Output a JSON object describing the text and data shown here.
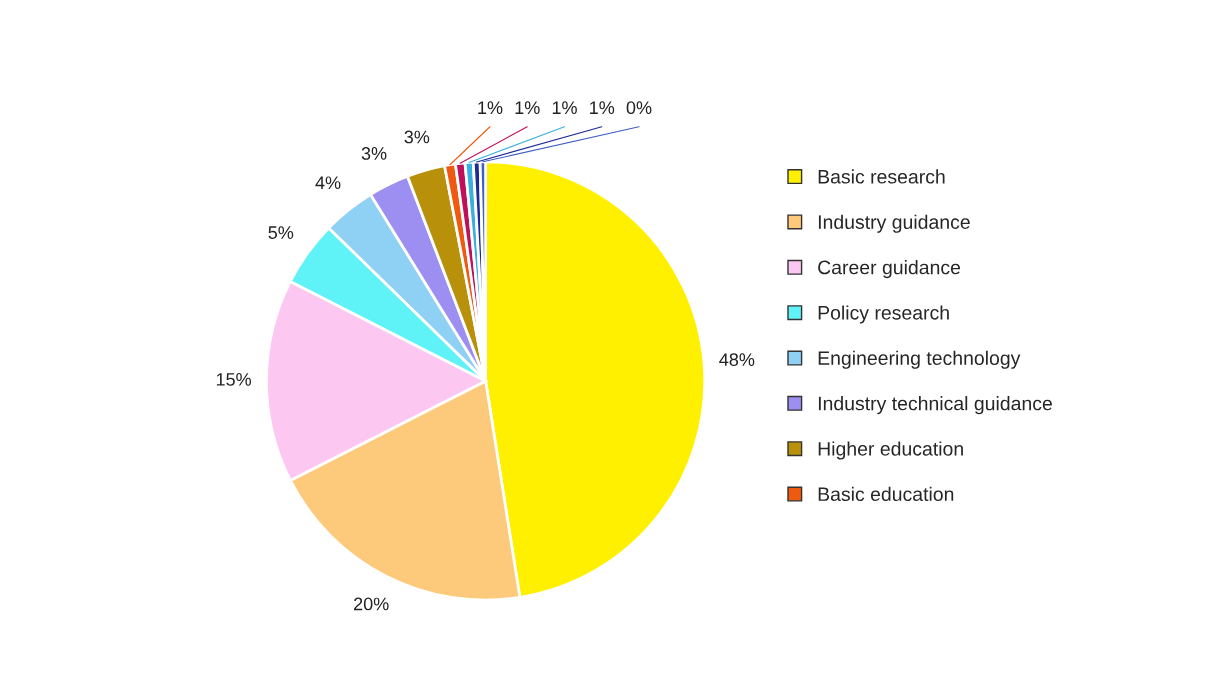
{
  "chart_data": {
    "type": "pie",
    "categories": [
      "Basic research",
      "Industry guidance",
      "Career guidance",
      "Policy research",
      "Engineering technology",
      "Industry technical guidance",
      "Higher education",
      "Basic education",
      null,
      null,
      null,
      null
    ],
    "values": [
      47.5,
      20,
      15,
      4.8,
      3.9,
      3,
      2.8,
      0.8,
      0.7,
      0.6,
      0.5,
      0.4
    ],
    "colors": [
      "#fff000",
      "#fdc97a",
      "#fcc8f2",
      "#5ff2f7",
      "#8fd0f5",
      "#9d8ff2",
      "#b8900a",
      "#f05a10",
      "#c0105a",
      "#3bb0e0",
      "#1a2a9a",
      "#4060c0"
    ],
    "value_labels": [
      "48%",
      "20%",
      "15%",
      "5%",
      "4%",
      "3%",
      "3%",
      "1%",
      "1%",
      "1%",
      "1%",
      "0%"
    ],
    "legend": "right"
  }
}
